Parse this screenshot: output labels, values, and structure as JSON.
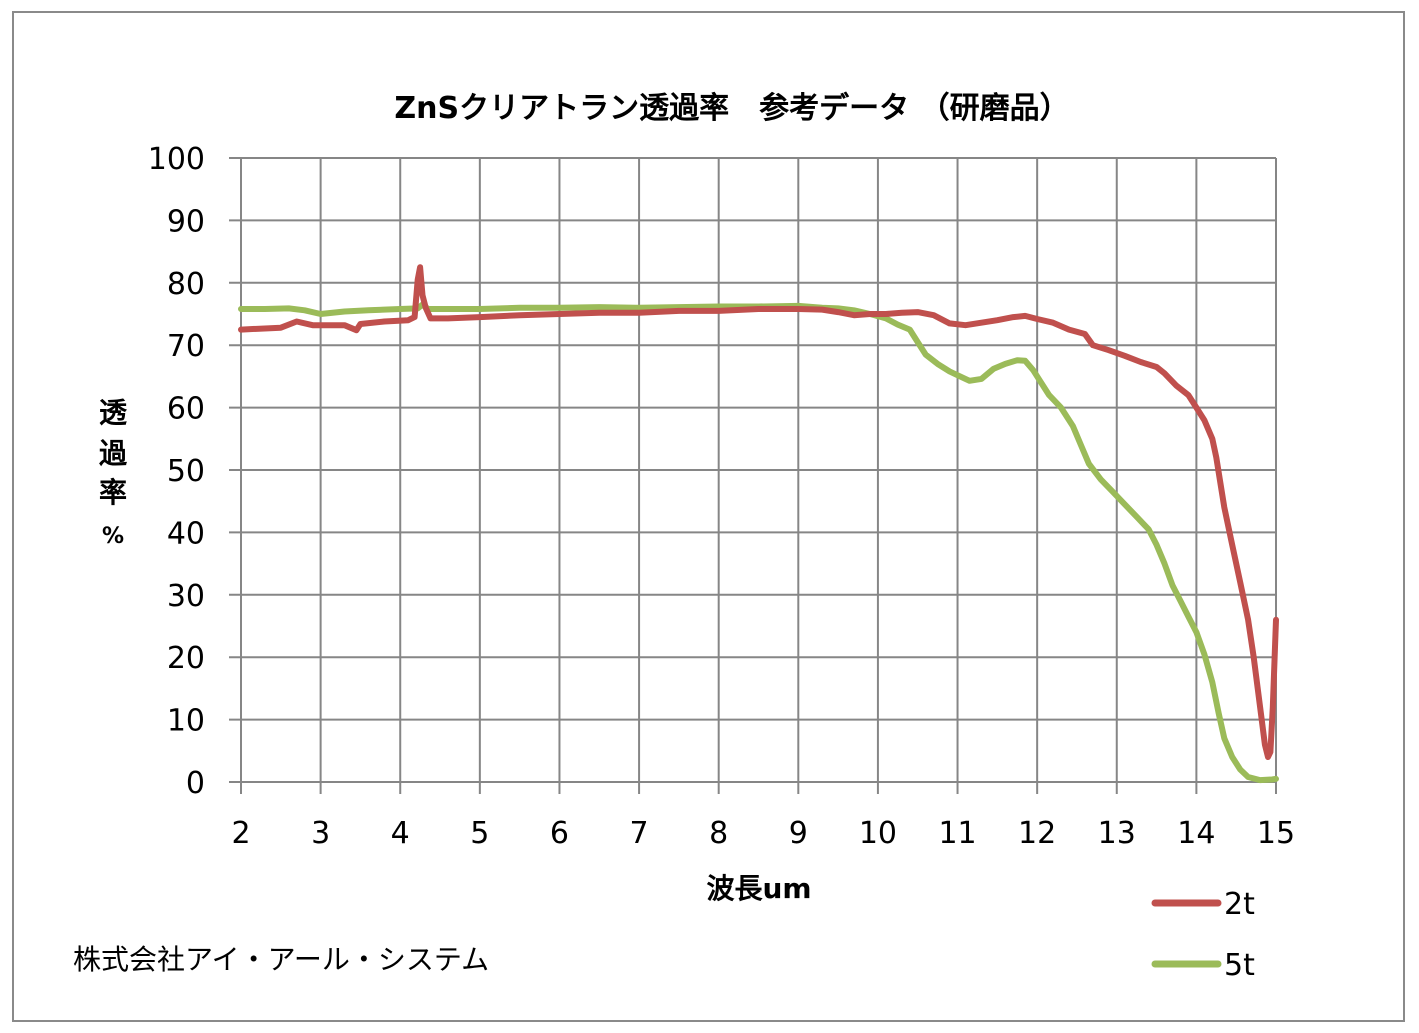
{
  "company": "株式会社アイ・アール・システム",
  "chart_data": {
    "type": "line",
    "title": "ZnSクリアトラン透過率　参考データ （研磨品）",
    "xlabel": "波長um",
    "ylabel": [
      "透",
      "過",
      "率",
      "%"
    ],
    "xlim": [
      2,
      15
    ],
    "ylim": [
      0,
      100
    ],
    "x_ticks": [
      "2",
      "3",
      "4",
      "5",
      "6",
      "7",
      "8",
      "9",
      "10",
      "11",
      "12",
      "13",
      "14",
      "15"
    ],
    "y_ticks": [
      "0",
      "10",
      "20",
      "30",
      "40",
      "50",
      "60",
      "70",
      "80",
      "90",
      "100"
    ],
    "grid": true,
    "legend_position": "bottom-right",
    "series": [
      {
        "name": "2t",
        "color": "#c0504d",
        "points": [
          [
            2.0,
            72.5
          ],
          [
            2.5,
            72.8
          ],
          [
            2.7,
            73.8
          ],
          [
            2.9,
            73.2
          ],
          [
            3.3,
            73.2
          ],
          [
            3.45,
            72.4
          ],
          [
            3.5,
            73.4
          ],
          [
            3.8,
            73.8
          ],
          [
            4.1,
            74.0
          ],
          [
            4.18,
            74.5
          ],
          [
            4.22,
            80.5
          ],
          [
            4.25,
            82.5
          ],
          [
            4.28,
            78.0
          ],
          [
            4.32,
            76.0
          ],
          [
            4.38,
            74.3
          ],
          [
            4.6,
            74.3
          ],
          [
            5.0,
            74.5
          ],
          [
            5.5,
            74.8
          ],
          [
            6.0,
            75.0
          ],
          [
            6.5,
            75.2
          ],
          [
            7.0,
            75.2
          ],
          [
            7.5,
            75.5
          ],
          [
            8.0,
            75.5
          ],
          [
            8.5,
            75.8
          ],
          [
            9.0,
            75.8
          ],
          [
            9.3,
            75.7
          ],
          [
            9.5,
            75.3
          ],
          [
            9.7,
            74.8
          ],
          [
            9.9,
            75.0
          ],
          [
            10.1,
            75.0
          ],
          [
            10.3,
            75.2
          ],
          [
            10.5,
            75.3
          ],
          [
            10.7,
            74.8
          ],
          [
            10.9,
            73.5
          ],
          [
            11.1,
            73.2
          ],
          [
            11.3,
            73.6
          ],
          [
            11.5,
            74.0
          ],
          [
            11.7,
            74.5
          ],
          [
            11.85,
            74.7
          ],
          [
            12.0,
            74.2
          ],
          [
            12.2,
            73.6
          ],
          [
            12.4,
            72.5
          ],
          [
            12.6,
            71.8
          ],
          [
            12.7,
            70.0
          ],
          [
            12.9,
            69.2
          ],
          [
            13.1,
            68.3
          ],
          [
            13.3,
            67.3
          ],
          [
            13.5,
            66.5
          ],
          [
            13.6,
            65.5
          ],
          [
            13.75,
            63.5
          ],
          [
            13.9,
            62.0
          ],
          [
            14.0,
            60.0
          ],
          [
            14.1,
            58.0
          ],
          [
            14.2,
            55.0
          ],
          [
            14.25,
            52.0
          ],
          [
            14.3,
            48.0
          ],
          [
            14.35,
            44.0
          ],
          [
            14.45,
            38.0
          ],
          [
            14.55,
            32.0
          ],
          [
            14.65,
            26.0
          ],
          [
            14.72,
            20.0
          ],
          [
            14.77,
            15.0
          ],
          [
            14.82,
            10.0
          ],
          [
            14.86,
            6.0
          ],
          [
            14.9,
            4.0
          ],
          [
            14.93,
            4.8
          ],
          [
            14.96,
            12.0
          ],
          [
            15.0,
            26.0
          ]
        ]
      },
      {
        "name": "5t",
        "color": "#9bbb59",
        "points": [
          [
            2.0,
            75.8
          ],
          [
            2.3,
            75.8
          ],
          [
            2.6,
            75.9
          ],
          [
            2.8,
            75.6
          ],
          [
            3.0,
            75.0
          ],
          [
            3.3,
            75.4
          ],
          [
            3.6,
            75.6
          ],
          [
            4.0,
            75.8
          ],
          [
            4.22,
            75.9
          ],
          [
            4.28,
            76.5
          ],
          [
            4.35,
            75.8
          ],
          [
            5.0,
            75.8
          ],
          [
            5.5,
            76.0
          ],
          [
            6.0,
            76.0
          ],
          [
            6.5,
            76.1
          ],
          [
            7.0,
            76.0
          ],
          [
            7.5,
            76.1
          ],
          [
            8.0,
            76.2
          ],
          [
            8.5,
            76.2
          ],
          [
            9.0,
            76.3
          ],
          [
            9.3,
            76.0
          ],
          [
            9.5,
            75.9
          ],
          [
            9.7,
            75.6
          ],
          [
            9.9,
            75.0
          ],
          [
            10.1,
            74.3
          ],
          [
            10.25,
            73.3
          ],
          [
            10.4,
            72.5
          ],
          [
            10.5,
            70.5
          ],
          [
            10.6,
            68.5
          ],
          [
            10.75,
            67.0
          ],
          [
            10.9,
            65.8
          ],
          [
            11.0,
            65.2
          ],
          [
            11.15,
            64.3
          ],
          [
            11.3,
            64.6
          ],
          [
            11.45,
            66.2
          ],
          [
            11.6,
            67.0
          ],
          [
            11.75,
            67.6
          ],
          [
            11.85,
            67.5
          ],
          [
            11.95,
            66.0
          ],
          [
            12.05,
            64.0
          ],
          [
            12.15,
            62.0
          ],
          [
            12.3,
            60.0
          ],
          [
            12.45,
            57.0
          ],
          [
            12.55,
            54.0
          ],
          [
            12.65,
            51.0
          ],
          [
            12.8,
            48.5
          ],
          [
            12.95,
            46.5
          ],
          [
            13.1,
            44.5
          ],
          [
            13.25,
            42.5
          ],
          [
            13.4,
            40.5
          ],
          [
            13.5,
            38.0
          ],
          [
            13.6,
            35.0
          ],
          [
            13.7,
            31.5
          ],
          [
            13.8,
            29.0
          ],
          [
            13.9,
            26.5
          ],
          [
            14.0,
            24.0
          ],
          [
            14.1,
            20.5
          ],
          [
            14.2,
            16.0
          ],
          [
            14.28,
            11.0
          ],
          [
            14.35,
            7.0
          ],
          [
            14.45,
            4.0
          ],
          [
            14.55,
            2.0
          ],
          [
            14.65,
            0.8
          ],
          [
            14.8,
            0.3
          ],
          [
            14.95,
            0.4
          ],
          [
            15.0,
            0.5
          ]
        ]
      }
    ]
  }
}
